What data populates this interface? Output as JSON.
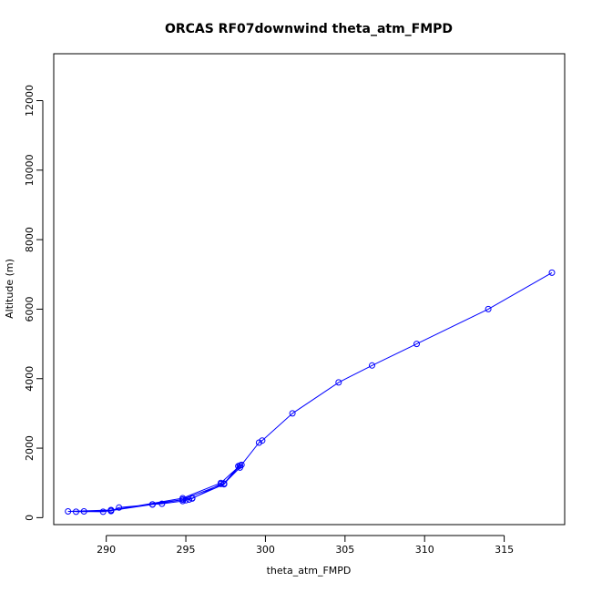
{
  "chart_data": {
    "type": "line",
    "title": "ORCAS RF07downwind theta_atm_FMPD",
    "xlabel": "theta_atm_FMPD",
    "ylabel": "Altitude (m)",
    "xlim": [
      286.7,
      318.8
    ],
    "ylim": [
      -200,
      13350
    ],
    "xticks": [
      290,
      295,
      300,
      305,
      310,
      315
    ],
    "yticks": [
      0,
      2000,
      4000,
      6000,
      8000,
      10000,
      12000
    ],
    "grid": false,
    "series": [
      {
        "color": "#0000ff",
        "marker": "open-circle",
        "points": [
          {
            "x": 318.0,
            "y": 7050
          },
          {
            "x": 314.0,
            "y": 6000
          },
          {
            "x": 309.5,
            "y": 5000
          },
          {
            "x": 306.7,
            "y": 4380
          },
          {
            "x": 304.6,
            "y": 3890
          },
          {
            "x": 301.7,
            "y": 3000
          },
          {
            "x": 299.8,
            "y": 2220
          },
          {
            "x": 299.6,
            "y": 2160
          },
          {
            "x": 298.5,
            "y": 1520
          },
          {
            "x": 298.3,
            "y": 1480
          },
          {
            "x": 298.4,
            "y": 1440
          },
          {
            "x": 297.4,
            "y": 980
          },
          {
            "x": 297.2,
            "y": 970
          },
          {
            "x": 295.4,
            "y": 550
          },
          {
            "x": 295.2,
            "y": 520
          },
          {
            "x": 295.0,
            "y": 500
          },
          {
            "x": 294.8,
            "y": 480
          },
          {
            "x": 293.5,
            "y": 400
          },
          {
            "x": 292.9,
            "y": 380
          },
          {
            "x": 290.8,
            "y": 290
          },
          {
            "x": 290.3,
            "y": 190
          },
          {
            "x": 288.6,
            "y": 180
          },
          {
            "x": 288.1,
            "y": 170
          },
          {
            "x": 290.3,
            "y": 210
          },
          {
            "x": 294.8,
            "y": 560
          },
          {
            "x": 297.2,
            "y": 1000
          },
          {
            "x": 298.4,
            "y": 1500
          },
          {
            "x": 297.4,
            "y": 960
          },
          {
            "x": 295.4,
            "y": 560
          },
          {
            "x": 292.9,
            "y": 380
          },
          {
            "x": 289.8,
            "y": 170
          },
          {
            "x": 287.6,
            "y": 180
          },
          {
            "x": 290.3,
            "y": 220
          },
          {
            "x": 294.8,
            "y": 520
          },
          {
            "x": 297.4,
            "y": 980
          },
          {
            "x": 298.3,
            "y": 1480
          }
        ]
      }
    ]
  }
}
